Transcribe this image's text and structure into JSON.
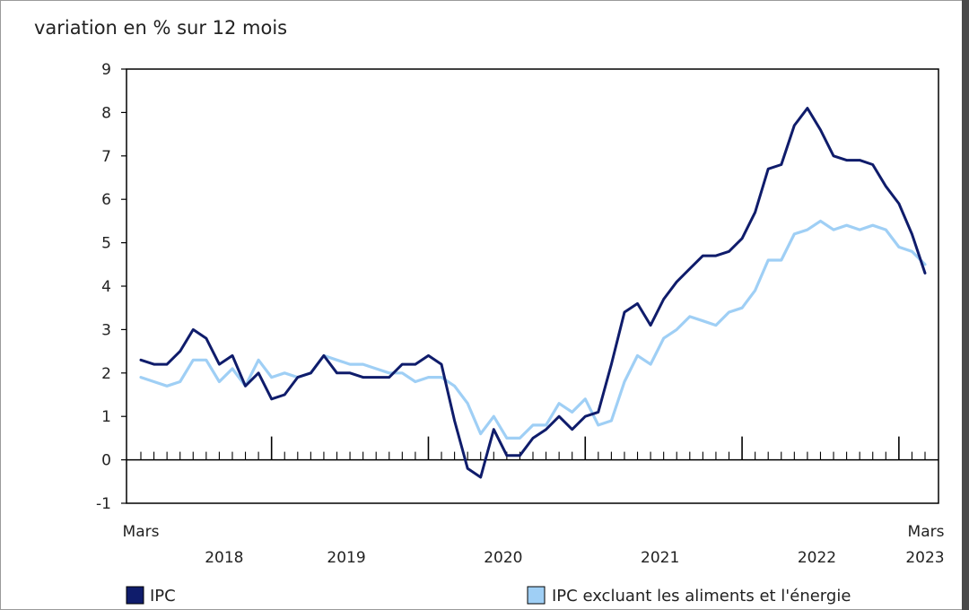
{
  "chart_data": {
    "type": "line",
    "title": "variation en % sur 12 mois",
    "ylim": [
      -1,
      9
    ],
    "yticks": [
      -1,
      0,
      1,
      2,
      3,
      4,
      5,
      6,
      7,
      8,
      9
    ],
    "x_start_label": "Mars",
    "x_end_label": "Mars",
    "year_labels": [
      "2018",
      "2019",
      "2020",
      "2021",
      "2022",
      "2023"
    ],
    "series": [
      {
        "name": "IPC",
        "color": "#0f1c6b",
        "values": [
          2.3,
          2.2,
          2.2,
          2.5,
          3.0,
          2.8,
          2.2,
          2.4,
          1.7,
          2.0,
          1.4,
          1.5,
          1.9,
          2.0,
          2.4,
          2.0,
          2.0,
          1.9,
          1.9,
          1.9,
          2.2,
          2.2,
          2.4,
          2.2,
          0.9,
          -0.2,
          -0.4,
          0.7,
          0.1,
          0.1,
          0.5,
          0.7,
          1.0,
          0.7,
          1.0,
          1.1,
          2.2,
          3.4,
          3.6,
          3.1,
          3.7,
          4.1,
          4.4,
          4.7,
          4.7,
          4.8,
          5.1,
          5.7,
          6.7,
          6.8,
          7.7,
          8.1,
          7.6,
          7.0,
          6.9,
          6.9,
          6.8,
          6.3,
          5.9,
          5.2,
          4.3
        ]
      },
      {
        "name": "IPC excluant les aliments et l'énergie",
        "color": "#9fcff5",
        "values": [
          1.9,
          1.8,
          1.7,
          1.8,
          2.3,
          2.3,
          1.8,
          2.1,
          1.7,
          2.3,
          1.9,
          2.0,
          1.9,
          2.0,
          2.4,
          2.3,
          2.2,
          2.2,
          2.1,
          2.0,
          2.0,
          1.8,
          1.9,
          1.9,
          1.7,
          1.3,
          0.6,
          1.0,
          0.5,
          0.5,
          0.8,
          0.8,
          1.3,
          1.1,
          1.4,
          0.8,
          0.9,
          1.8,
          2.4,
          2.2,
          2.8,
          3.0,
          3.3,
          3.2,
          3.1,
          3.4,
          3.5,
          3.9,
          4.6,
          4.6,
          5.2,
          5.3,
          5.5,
          5.3,
          5.4,
          5.3,
          5.4,
          5.3,
          4.9,
          4.8,
          4.5
        ]
      }
    ]
  }
}
